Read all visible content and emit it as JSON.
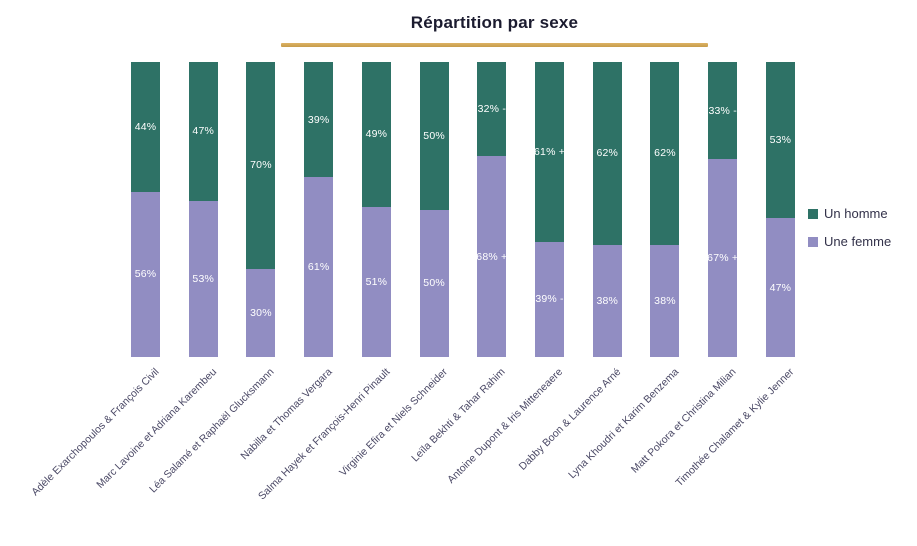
{
  "title": "Répartition par sexe",
  "accent": {
    "underline_color_top": "#DDB264",
    "underline_color_bottom": "#C69C4B"
  },
  "legend": {
    "position": "right",
    "items": [
      {
        "label": "Un homme",
        "color": "#2E7266"
      },
      {
        "label": "Une femme",
        "color": "#918DC2"
      }
    ]
  },
  "chart_data": {
    "type": "bar",
    "stacked": true,
    "orientation": "vertical",
    "unit": "%",
    "ylim": [
      0,
      100
    ],
    "grid": false,
    "y_axis_visible": false,
    "legend_position": "right",
    "title": "Répartition par sexe",
    "categories": [
      "Adèle Exarchopoulos & François Civil",
      "Marc Lavoine et Adriana Karembeu",
      "Léa Salamé et Raphaël Glucksmann",
      "Nabilla et Thomas Vergara",
      "Salma Hayek et François-Henri Pinault",
      "Virginie Efira et Niels Schneider",
      "Leïla Bekhti & Tahar Rahim",
      "Antoine Dupont & Iris Mitteneaere",
      "Dabby Boon & Laurence Arné",
      "Lyna Khoudri et Karim Benzema",
      "Matt Pokora et Christina Milian",
      "Timothée Chalamet & Kylie Jenner"
    ],
    "series": [
      {
        "name": "Un homme",
        "stack_position": "top",
        "color": "#2E7266",
        "values": [
          44,
          47,
          70,
          39,
          49,
          50,
          32,
          61,
          62,
          62,
          33,
          53
        ],
        "labels": [
          "44%",
          "47%",
          "70%",
          "39%",
          "49%",
          "50%",
          "32% -",
          "61% +",
          "62%",
          "62%",
          "33% -",
          "53%"
        ]
      },
      {
        "name": "Une femme",
        "stack_position": "bottom",
        "color": "#918DC2",
        "values": [
          56,
          53,
          30,
          61,
          51,
          50,
          68,
          39,
          38,
          38,
          67,
          47
        ],
        "labels": [
          "56%",
          "53%",
          "30%",
          "61%",
          "51%",
          "50%",
          "68% +",
          "39% -",
          "38%",
          "38%",
          "67% +",
          "47%"
        ]
      }
    ]
  }
}
